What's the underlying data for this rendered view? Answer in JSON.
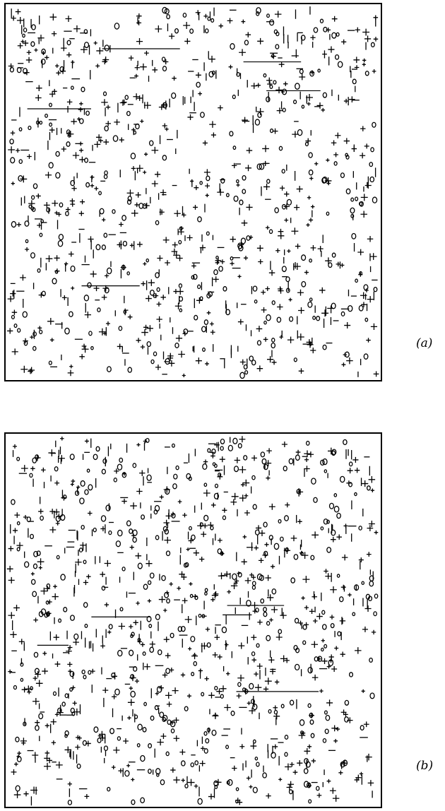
{
  "panels": [
    {
      "id": "a",
      "label": "(a)",
      "symbols": [
        "+",
        "o",
        "|"
      ],
      "seed": 17,
      "count": 950
    },
    {
      "id": "b",
      "label": "(b)",
      "symbols": [
        "+",
        "o",
        "|"
      ],
      "seed": 91,
      "count": 1050
    }
  ],
  "colors": {
    "ink": "#000000",
    "paper": "#ffffff"
  }
}
